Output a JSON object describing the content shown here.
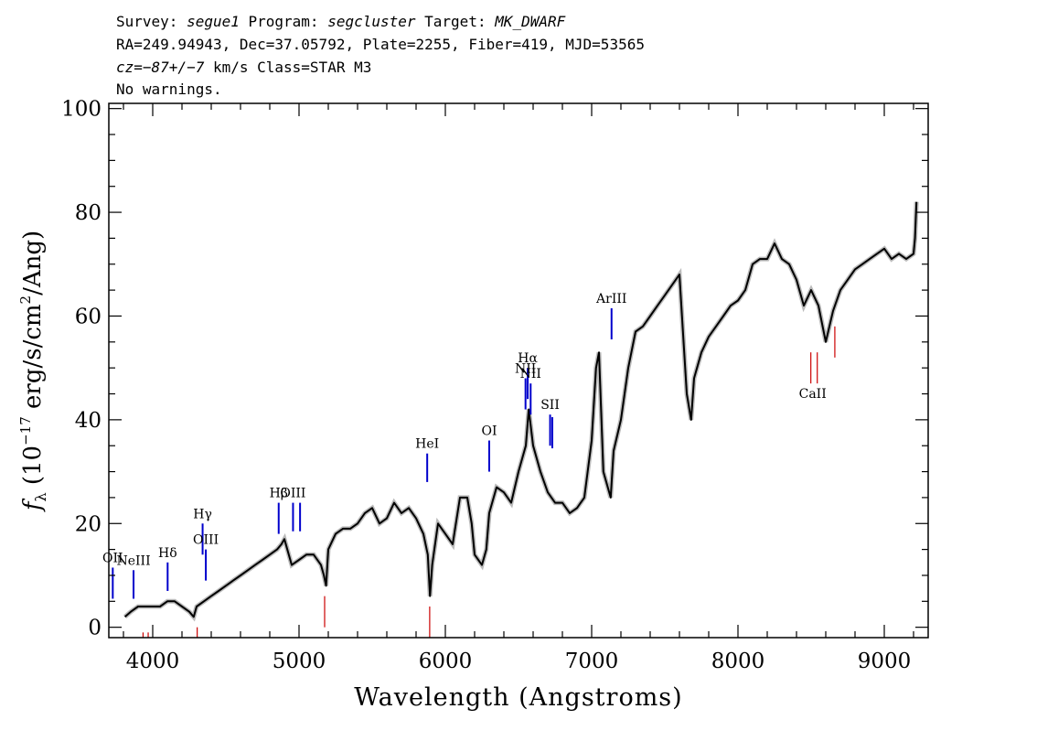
{
  "header": {
    "line1": {
      "survey_label": "Survey: ",
      "survey": "segue1",
      "program_label": " Program: ",
      "program": "segcluster",
      "target_label": " Target: ",
      "target": "MK_DWARF"
    },
    "line2": "RA=249.94943, Dec=37.05792, Plate=2255, Fiber=419, MJD=53565",
    "line3": {
      "cz": "cz=−87+/−7",
      "rest": " km/s Class=STAR M3"
    },
    "line4": "No warnings."
  },
  "chart_data": {
    "type": "line",
    "title": "",
    "xlabel": "Wavelength (Angstroms)",
    "ylabel": "f_λ (10^-17 erg/s/cm^2/Ang)",
    "xlim": [
      3700,
      9300
    ],
    "ylim": [
      -2,
      101
    ],
    "xticks": [
      4000,
      5000,
      6000,
      7000,
      8000,
      9000
    ],
    "yticks": [
      0,
      20,
      40,
      60,
      80,
      100
    ],
    "tick_labels_x": [
      "4000",
      "5000",
      "6000",
      "7000",
      "8000",
      "9000"
    ],
    "tick_labels_y": [
      "0",
      "20",
      "40",
      "60",
      "80",
      "100"
    ],
    "grid": false,
    "series": [
      {
        "x": [
          3810,
          3850,
          3900,
          3950,
          4000,
          4050,
          4100,
          4150,
          4200,
          4250,
          4280,
          4300,
          4350,
          4400,
          4450,
          4500,
          4550,
          4600,
          4650,
          4700,
          4750,
          4800,
          4850,
          4880,
          4900,
          4950,
          5000,
          5050,
          5100,
          5150,
          5170,
          5185,
          5200,
          5250,
          5300,
          5350,
          5400,
          5450,
          5500,
          5550,
          5600,
          5650,
          5700,
          5750,
          5800,
          5850,
          5880,
          5895,
          5910,
          5930,
          5950,
          6000,
          6050,
          6100,
          6150,
          6180,
          6200,
          6250,
          6280,
          6300,
          6350,
          6400,
          6450,
          6500,
          6550,
          6570,
          6600,
          6650,
          6700,
          6750,
          6800,
          6850,
          6900,
          6950,
          7000,
          7030,
          7050,
          7080,
          7100,
          7130,
          7150,
          7200,
          7250,
          7300,
          7350,
          7400,
          7450,
          7500,
          7550,
          7600,
          7650,
          7680,
          7700,
          7750,
          7800,
          7850,
          7900,
          7950,
          8000,
          8050,
          8100,
          8150,
          8200,
          8250,
          8300,
          8350,
          8400,
          8450,
          8500,
          8550,
          8600,
          8650,
          8700,
          8750,
          8800,
          8850,
          8900,
          8950,
          9000,
          9050,
          9100,
          9150,
          9200,
          9210,
          9220
        ],
        "values": [
          2,
          3,
          4,
          4,
          4,
          4,
          5,
          5,
          4,
          3,
          2,
          4,
          5,
          6,
          7,
          8,
          9,
          10,
          11,
          12,
          13,
          14,
          15,
          16,
          17,
          12,
          13,
          14,
          14,
          12,
          10,
          8,
          15,
          18,
          19,
          19,
          20,
          22,
          23,
          20,
          21,
          24,
          22,
          23,
          21,
          18,
          14,
          6,
          12,
          16,
          20,
          18,
          16,
          25,
          25,
          20,
          14,
          12,
          15,
          22,
          27,
          26,
          24,
          30,
          35,
          42,
          35,
          30,
          26,
          24,
          24,
          22,
          23,
          25,
          36,
          50,
          53,
          30,
          28,
          25,
          34,
          40,
          50,
          57,
          58,
          60,
          62,
          64,
          66,
          68,
          45,
          40,
          48,
          53,
          56,
          58,
          60,
          62,
          63,
          65,
          70,
          71,
          71,
          74,
          71,
          70,
          67,
          62,
          65,
          62,
          55,
          61,
          65,
          67,
          69,
          70,
          71,
          72,
          73,
          71,
          72,
          71,
          72,
          75,
          82
        ],
        "color": "#000000"
      }
    ],
    "lines": [
      {
        "label": "OII",
        "x": 3727,
        "y_lo": 5.5,
        "y_hi": 11.5,
        "color": "#0000cc"
      },
      {
        "label": "NeIII",
        "x": 3869,
        "y_lo": 5.5,
        "y_hi": 11,
        "color": "#0000cc"
      },
      {
        "label": "Hδ",
        "x": 4102,
        "y_lo": 7,
        "y_hi": 12.5,
        "color": "#0000cc"
      },
      {
        "label": "Hγ",
        "x": 4341,
        "y_lo": 14,
        "y_hi": 20,
        "color": "#0000cc"
      },
      {
        "label": "OIII",
        "x": 4363,
        "y_lo": 9,
        "y_hi": 15,
        "color": "#0000cc"
      },
      {
        "label": "Hβ",
        "x": 4861,
        "y_lo": 18,
        "y_hi": 24,
        "color": "#0000cc"
      },
      {
        "label": "OIII",
        "x": 4959,
        "y_lo": 18.5,
        "y_hi": 24,
        "color": "#0000cc"
      },
      {
        "label": "",
        "x": 5007,
        "y_lo": 18.5,
        "y_hi": 24,
        "color": "#0000cc"
      },
      {
        "label": "HeI",
        "x": 5876,
        "y_lo": 28,
        "y_hi": 33.5,
        "color": "#0000cc"
      },
      {
        "label": "OI",
        "x": 6300,
        "y_lo": 30,
        "y_hi": 36,
        "color": "#0000cc"
      },
      {
        "label": "NII",
        "x": 6548,
        "y_lo": 42,
        "y_hi": 48,
        "color": "#0000cc"
      },
      {
        "label": "Hα",
        "x": 6563,
        "y_lo": 44,
        "y_hi": 50,
        "color": "#0000cc"
      },
      {
        "label": "NII",
        "x": 6583,
        "y_lo": 41,
        "y_hi": 47,
        "color": "#0000cc"
      },
      {
        "label": "SII",
        "x": 6716,
        "y_lo": 35,
        "y_hi": 41,
        "color": "#0000cc"
      },
      {
        "label": "",
        "x": 6731,
        "y_lo": 34.5,
        "y_hi": 40.5,
        "color": "#0000cc"
      },
      {
        "label": "ArIII",
        "x": 7136,
        "y_lo": 55.5,
        "y_hi": 61.5,
        "color": "#0000cc"
      },
      {
        "label": "",
        "x": 3934,
        "y_lo": -2,
        "y_hi": -1,
        "color": "#cc0000"
      },
      {
        "label": "",
        "x": 3969,
        "y_lo": -2,
        "y_hi": -1,
        "color": "#cc0000"
      },
      {
        "label": "",
        "x": 4304,
        "y_lo": -2,
        "y_hi": 0,
        "color": "#cc0000"
      },
      {
        "label": "",
        "x": 5175,
        "y_lo": 0,
        "y_hi": 6,
        "color": "#cc0000"
      },
      {
        "label": "",
        "x": 5893,
        "y_lo": -2,
        "y_hi": 4,
        "color": "#cc0000"
      },
      {
        "label": "CaII",
        "x": 8498,
        "y_lo": 47,
        "y_hi": 53,
        "color": "#cc0000"
      },
      {
        "label": "",
        "x": 8542,
        "y_lo": 47,
        "y_hi": 53,
        "color": "#cc0000"
      },
      {
        "label": "",
        "x": 8662,
        "y_lo": 52,
        "y_hi": 58,
        "color": "#cc0000"
      }
    ]
  }
}
